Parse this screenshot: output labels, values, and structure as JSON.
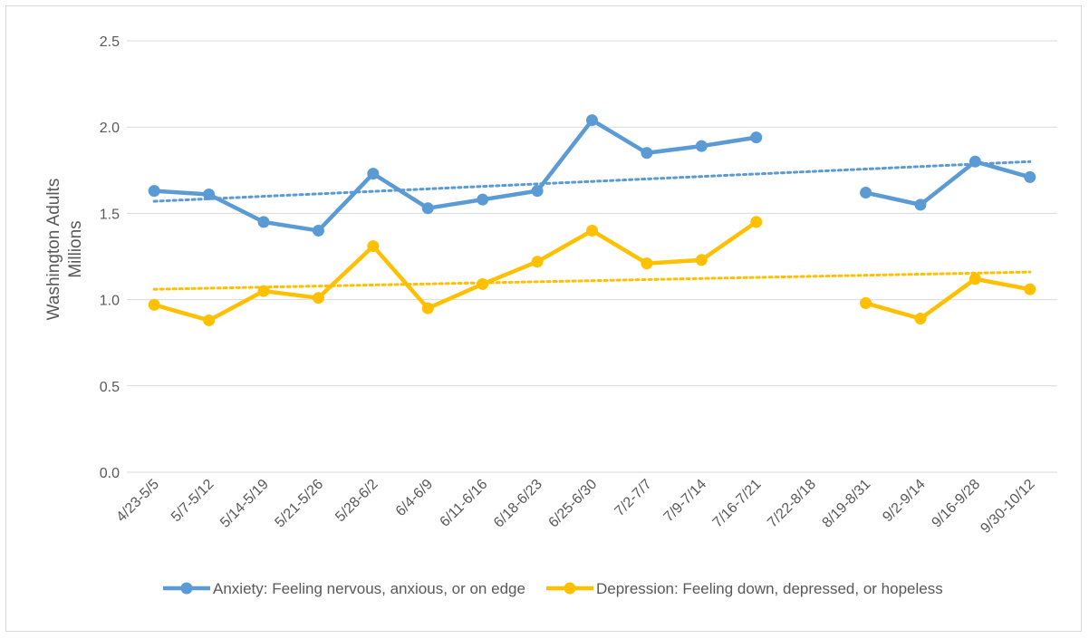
{
  "chart_data": {
    "type": "line",
    "title": "",
    "xlabel": "",
    "ylabel": "Washington Adults",
    "ylabel_sub": "Millions",
    "ylim": [
      0,
      2.5
    ],
    "y_ticks": [
      "0.0",
      "0.5",
      "1.0",
      "1.5",
      "2.0",
      "2.5"
    ],
    "grid": true,
    "legend_position": "bottom",
    "categories": [
      "4/23-5/5",
      "5/7-5/12",
      "5/14-5/19",
      "5/21-5/26",
      "5/28-6/2",
      "6/4-6/9",
      "6/11-6/16",
      "6/18-6/23",
      "6/25-6/30",
      "7/2-7/7",
      "7/9-7/14",
      "7/16-7/21",
      "7/22-8/18",
      "8/19-8/31",
      "9/2-9/14",
      "9/16-9/28",
      "9/30-10/12"
    ],
    "series": [
      {
        "name": "Anxiety: Feeling nervous, anxious, or on edge",
        "color": "#5b9bd5",
        "values": [
          1.63,
          1.61,
          1.45,
          1.4,
          1.73,
          1.53,
          1.58,
          1.63,
          2.04,
          1.85,
          1.89,
          1.94,
          null,
          1.62,
          1.55,
          1.8,
          1.71
        ],
        "trendline": [
          1.57,
          1.8
        ]
      },
      {
        "name": "Depression: Feeling down, depressed, or hopeless",
        "color": "#ffc000",
        "values": [
          0.97,
          0.88,
          1.05,
          1.01,
          1.31,
          0.95,
          1.09,
          1.22,
          1.4,
          1.21,
          1.23,
          1.45,
          null,
          0.98,
          0.89,
          1.12,
          1.06
        ],
        "trendline": [
          1.06,
          1.16
        ]
      }
    ]
  }
}
